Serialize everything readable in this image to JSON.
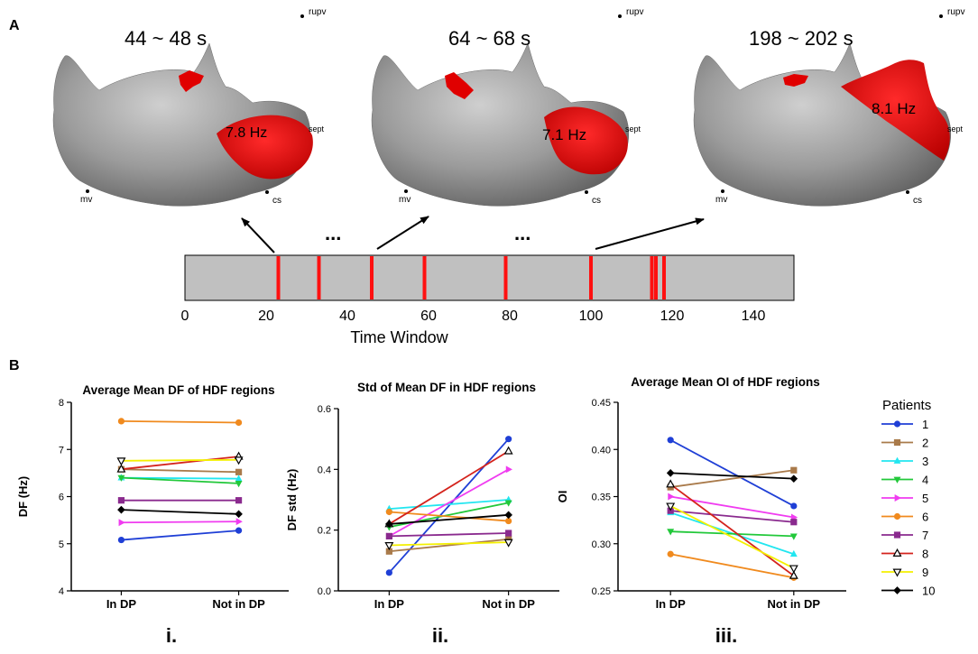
{
  "panel_labels": {
    "a": "A",
    "b": "B"
  },
  "maps": [
    {
      "time_label": "44 ~ 48 s",
      "freq_label": "7.8 Hz",
      "landmarks": [
        "rupv",
        "mv",
        "cs",
        "sept"
      ]
    },
    {
      "time_label": "64 ~ 68 s",
      "freq_label": "7.1 Hz",
      "landmarks": [
        "rupv",
        "mv",
        "cs",
        "sept"
      ]
    },
    {
      "time_label": "198 ~ 202 s",
      "freq_label": "8.1 Hz",
      "landmarks": [
        "rupv",
        "mv",
        "cs",
        "sept"
      ]
    }
  ],
  "ellipsis": "...",
  "colors": {
    "map_surface": "#9b9b9b",
    "hdf_region": "#e00000",
    "timeline_bg": "#c0c0c0",
    "timeline_mark": "#ff1010"
  },
  "legend": {
    "title": "Patients",
    "entries": [
      {
        "label": "1",
        "color": "#1f3fd6",
        "marker": "circle"
      },
      {
        "label": "2",
        "color": "#a97a4a",
        "marker": "square"
      },
      {
        "label": "3",
        "color": "#22e6f0",
        "marker": "triangle-up"
      },
      {
        "label": "4",
        "color": "#22c83a",
        "marker": "triangle-down"
      },
      {
        "label": "5",
        "color": "#f03cf0",
        "marker": "triangle-right"
      },
      {
        "label": "6",
        "color": "#f08a1e",
        "marker": "circle"
      },
      {
        "label": "7",
        "color": "#8a2a8e",
        "marker": "square"
      },
      {
        "label": "8",
        "color": "#d4231c",
        "marker": "triangle-up-open"
      },
      {
        "label": "9",
        "color": "#f4f000",
        "marker": "triangle-down-open"
      },
      {
        "label": "10",
        "color": "#000000",
        "marker": "diamond"
      }
    ]
  },
  "chart_data": [
    {
      "type": "timeline",
      "xlabel": "Time Window",
      "xlim": [
        0,
        150
      ],
      "xticks": [
        0,
        20,
        40,
        60,
        80,
        100,
        120,
        140
      ],
      "dp_windows": [
        23,
        33,
        46,
        59,
        79,
        100,
        115,
        116,
        118
      ]
    },
    {
      "type": "line",
      "panel": "i.",
      "title": "Average Mean DF of HDF regions",
      "ylabel": "DF  (Hz)",
      "categories": [
        "In DP",
        "Not in DP"
      ],
      "ylim": [
        4,
        8
      ],
      "yticks": [
        4,
        5,
        6,
        7,
        8
      ],
      "series": [
        {
          "name": "1",
          "values": [
            5.08,
            5.28
          ]
        },
        {
          "name": "2",
          "values": [
            6.58,
            6.52
          ]
        },
        {
          "name": "3",
          "values": [
            6.4,
            6.38
          ]
        },
        {
          "name": "4",
          "values": [
            6.4,
            6.28
          ]
        },
        {
          "name": "5",
          "values": [
            5.45,
            5.47
          ]
        },
        {
          "name": "6",
          "values": [
            7.6,
            7.57
          ]
        },
        {
          "name": "7",
          "values": [
            5.92,
            5.92
          ]
        },
        {
          "name": "8",
          "values": [
            6.58,
            6.85
          ]
        },
        {
          "name": "9",
          "values": [
            6.76,
            6.78
          ]
        },
        {
          "name": "10",
          "values": [
            5.72,
            5.63
          ]
        }
      ]
    },
    {
      "type": "line",
      "panel": "ii.",
      "title": "Std of Mean DF in HDF regions",
      "ylabel": "DF std (Hz)",
      "categories": [
        "In DP",
        "Not in DP"
      ],
      "ylim": [
        0,
        0.6
      ],
      "yticks": [
        0.0,
        0.2,
        0.4,
        0.6
      ],
      "series": [
        {
          "name": "1",
          "values": [
            0.06,
            0.5
          ]
        },
        {
          "name": "2",
          "values": [
            0.13,
            0.17
          ]
        },
        {
          "name": "3",
          "values": [
            0.27,
            0.3
          ]
        },
        {
          "name": "4",
          "values": [
            0.21,
            0.29
          ]
        },
        {
          "name": "5",
          "values": [
            0.18,
            0.4
          ]
        },
        {
          "name": "6",
          "values": [
            0.26,
            0.23
          ]
        },
        {
          "name": "7",
          "values": [
            0.18,
            0.19
          ]
        },
        {
          "name": "8",
          "values": [
            0.22,
            0.46
          ]
        },
        {
          "name": "9",
          "values": [
            0.15,
            0.16
          ]
        },
        {
          "name": "10",
          "values": [
            0.22,
            0.25
          ]
        }
      ]
    },
    {
      "type": "line",
      "panel": "iii.",
      "title": "Average Mean OI of HDF regions",
      "ylabel": "OI",
      "categories": [
        "In DP",
        "Not in DP"
      ],
      "ylim": [
        0.25,
        0.45
      ],
      "yticks": [
        0.25,
        0.3,
        0.35,
        0.4,
        0.45
      ],
      "series": [
        {
          "name": "1",
          "values": [
            0.41,
            0.34
          ]
        },
        {
          "name": "2",
          "values": [
            0.36,
            0.378
          ]
        },
        {
          "name": "3",
          "values": [
            0.333,
            0.289
          ]
        },
        {
          "name": "4",
          "values": [
            0.313,
            0.308
          ]
        },
        {
          "name": "5",
          "values": [
            0.35,
            0.328
          ]
        },
        {
          "name": "6",
          "values": [
            0.289,
            0.264
          ]
        },
        {
          "name": "7",
          "values": [
            0.335,
            0.323
          ]
        },
        {
          "name": "8",
          "values": [
            0.363,
            0.266
          ]
        },
        {
          "name": "9",
          "values": [
            0.34,
            0.274
          ]
        },
        {
          "name": "10",
          "values": [
            0.375,
            0.369
          ]
        }
      ]
    }
  ]
}
